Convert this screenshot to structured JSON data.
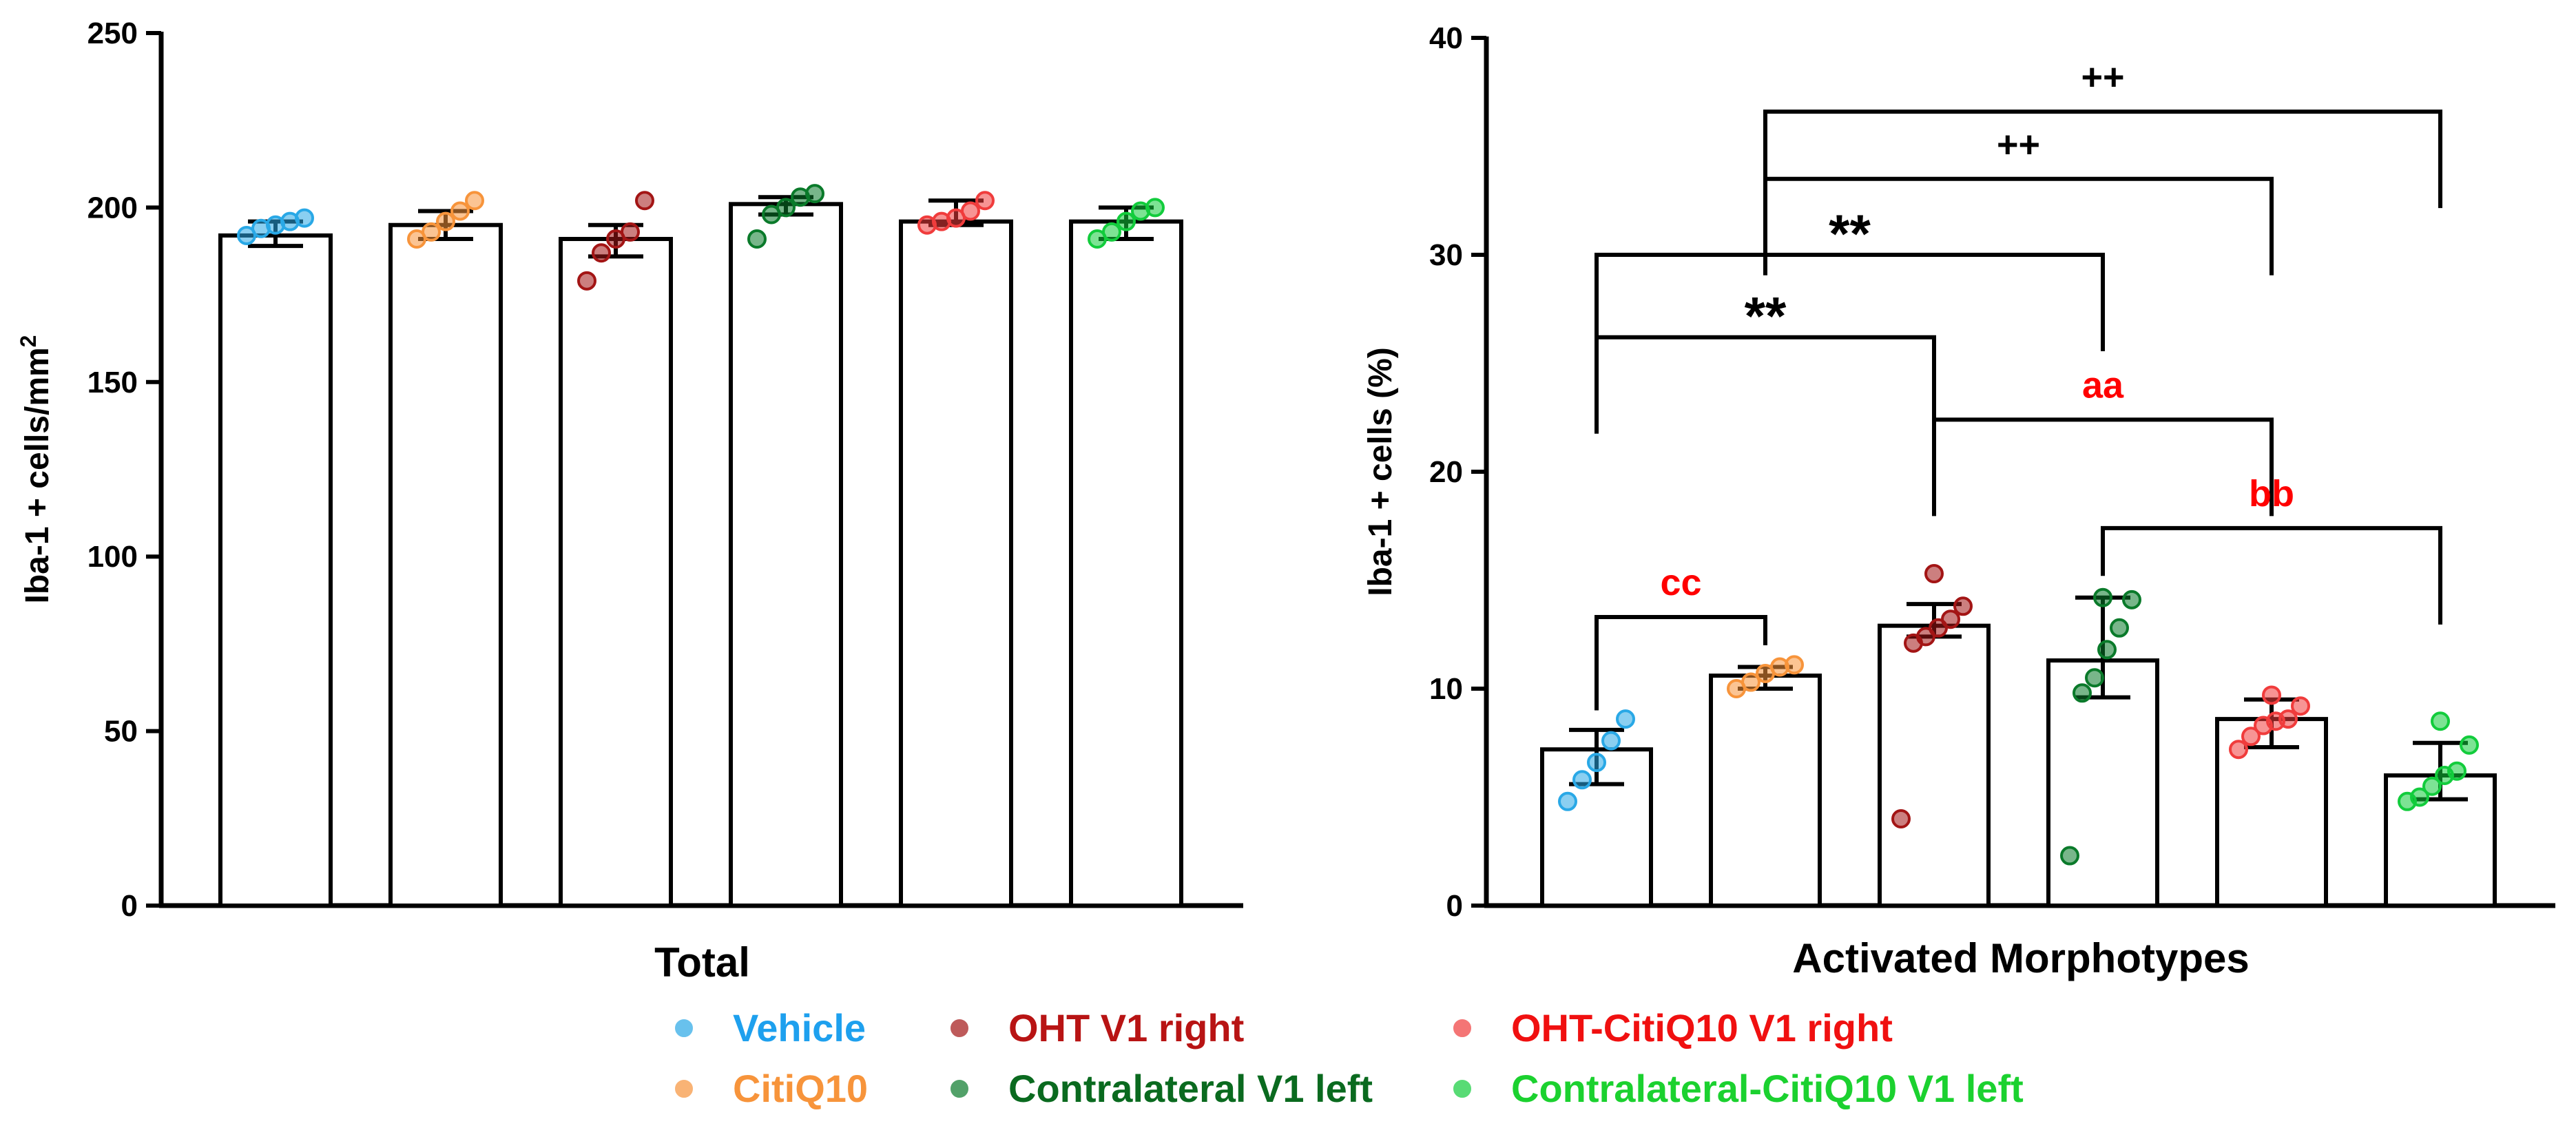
{
  "colors": {
    "Vehicle": "#29a8e6",
    "CitiQ10": "#f7943b",
    "OHT V1 right": "#a31515",
    "Contralateral V1 left": "#0a7a2a",
    "OHT-CitiQ10 V1 right": "#f03c3c",
    "Contralateral-CitiQ10 V1 left": "#12cc3c",
    "significance_black": "#000000",
    "significance_red": "#ff0000"
  },
  "legend": {
    "items": [
      {
        "label": "Vehicle",
        "text_color": "#1ea0ee",
        "dot_color": "#29a8e6"
      },
      {
        "label": "CitiQ10",
        "text_color": "#f7943b",
        "dot_color": "#f7943b"
      },
      {
        "label": "OHT V1 right",
        "text_color": "#b81414",
        "dot_color": "#a31515"
      },
      {
        "label": "Contralateral V1 left",
        "text_color": "#0a6a1f",
        "dot_color": "#0a7a2a"
      },
      {
        "label": "OHT-CitiQ10 V1 right",
        "text_color": "#f01010",
        "dot_color": "#f03c3c"
      },
      {
        "label": "Contralateral-CitiQ10 V1 left",
        "text_color": "#1bd12f",
        "dot_color": "#12cc3c"
      }
    ]
  },
  "chart_data": [
    {
      "type": "bar",
      "title": "",
      "xlabel": "Total",
      "ylabel": "Iba-1 + cells/mm",
      "ylabel_superscript": "2",
      "ylim": [
        0,
        250
      ],
      "yticks": [
        0,
        50,
        100,
        150,
        200,
        250
      ],
      "categories": [
        "Vehicle",
        "CitiQ10",
        "OHT V1 right",
        "Contralateral V1 left",
        "OHT-CitiQ10 V1 right",
        "Contralateral-CitiQ10 V1 left"
      ],
      "values": [
        192,
        195,
        191,
        201,
        196,
        196
      ],
      "error": [
        [
          189,
          196
        ],
        [
          191,
          199
        ],
        [
          186,
          195
        ],
        [
          198,
          203
        ],
        [
          195,
          202
        ],
        [
          191,
          200
        ]
      ],
      "points": [
        [
          192,
          194,
          195,
          196,
          197
        ],
        [
          191,
          193,
          196,
          199,
          202
        ],
        [
          179,
          187,
          191,
          193,
          202
        ],
        [
          191,
          198,
          200,
          203,
          204
        ],
        [
          195,
          196,
          197,
          199,
          202
        ],
        [
          191,
          193,
          196,
          199,
          200
        ]
      ],
      "annotations": []
    },
    {
      "type": "bar",
      "title": "",
      "xlabel": "Activated Morphotypes",
      "ylabel": "Iba-1 + cells (%)",
      "ylim": [
        0,
        40
      ],
      "yticks": [
        0,
        10,
        20,
        30,
        40
      ],
      "categories": [
        "Vehicle",
        "CitiQ10",
        "OHT V1 right",
        "Contralateral V1 left",
        "OHT-CitiQ10 V1 right",
        "Contralateral-CitiQ10 V1 left"
      ],
      "values": [
        7.2,
        10.6,
        12.9,
        11.3,
        8.6,
        6.0
      ],
      "error": [
        [
          5.6,
          8.1
        ],
        [
          10.0,
          11.0
        ],
        [
          12.4,
          13.9
        ],
        [
          9.6,
          14.2
        ],
        [
          7.3,
          9.5
        ],
        [
          4.9,
          7.5
        ]
      ],
      "points": [
        [
          4.8,
          5.8,
          6.6,
          7.6,
          8.6
        ],
        [
          10.0,
          10.3,
          10.7,
          11.0,
          11.1
        ],
        [
          4.0,
          12.1,
          12.4,
          12.8,
          13.2,
          13.8,
          15.3
        ],
        [
          2.3,
          9.8,
          10.5,
          11.8,
          12.8,
          14.1,
          14.2
        ],
        [
          7.2,
          7.8,
          8.3,
          8.5,
          8.6,
          9.2,
          9.7
        ],
        [
          4.8,
          5.0,
          5.5,
          6.0,
          6.2,
          7.4,
          8.5
        ]
      ],
      "annotations": [
        {
          "label": "++",
          "from": 1,
          "to": 5,
          "y": 36.6,
          "color": "black"
        },
        {
          "label": "++",
          "from": 1,
          "to": 4,
          "y": 33.5,
          "color": "black"
        },
        {
          "label": "**",
          "from": 0,
          "to": 3,
          "y": 30.0,
          "color": "black"
        },
        {
          "label": "**",
          "from": 0,
          "to": 2,
          "y": 26.2,
          "color": "black"
        },
        {
          "label": "aa",
          "from": 2,
          "to": 4,
          "y": 22.4,
          "color": "red"
        },
        {
          "label": "bb",
          "from": 3,
          "to": 5,
          "y": 17.4,
          "color": "red"
        },
        {
          "label": "cc",
          "from": 0,
          "to": 1,
          "y": 13.3,
          "color": "red"
        }
      ]
    }
  ]
}
